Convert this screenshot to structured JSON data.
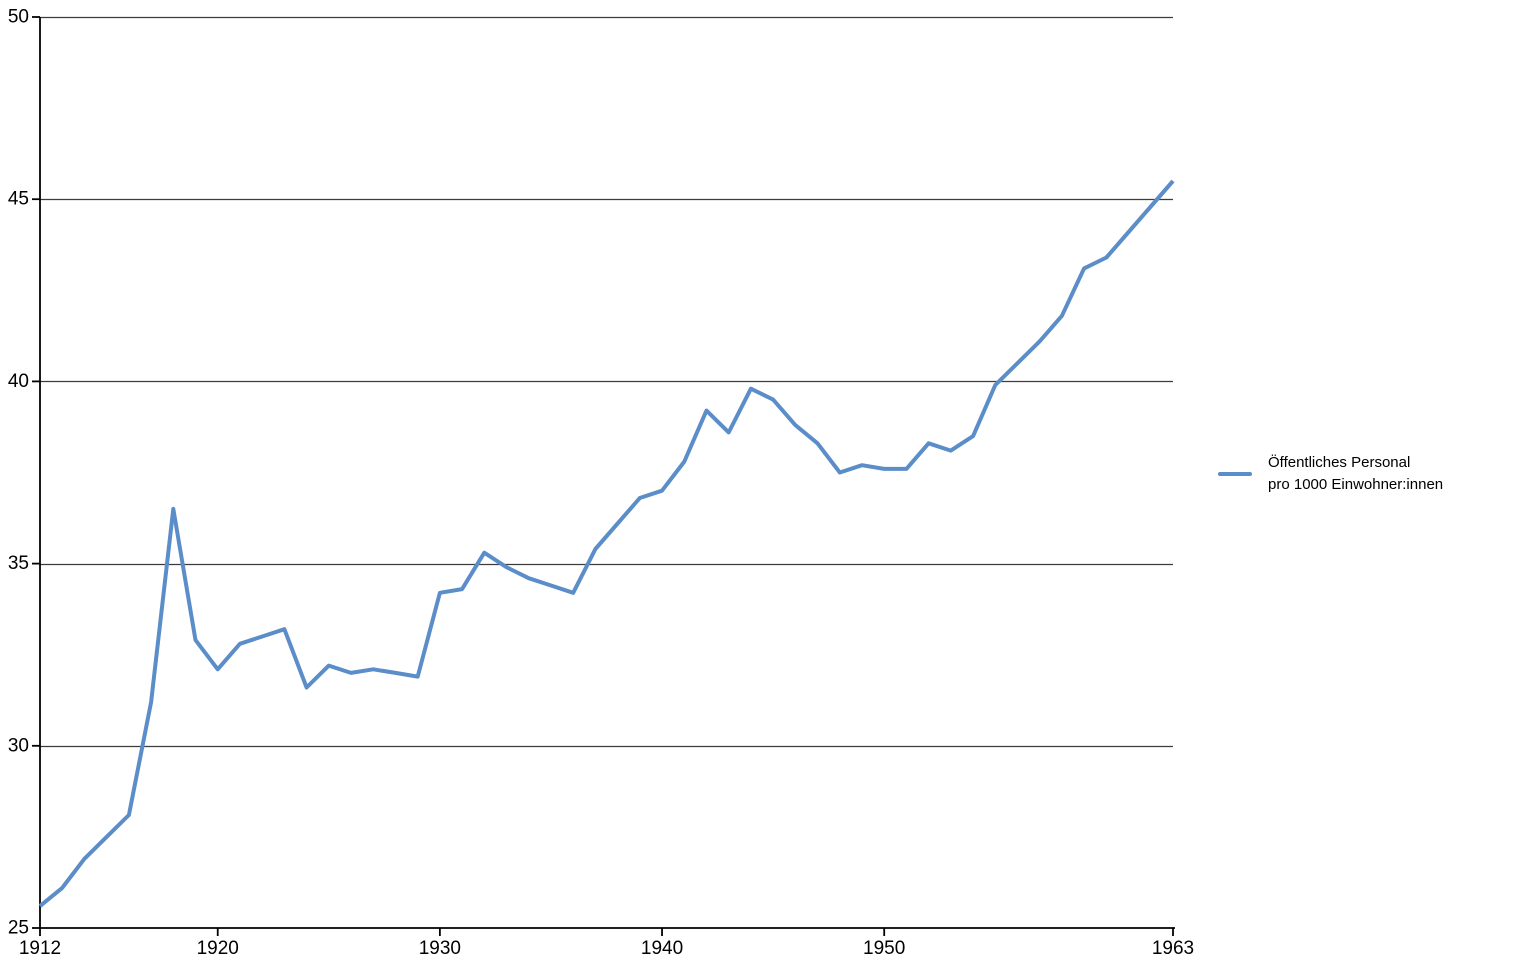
{
  "chart_data": {
    "type": "line",
    "title": "",
    "xlabel": "",
    "ylabel": "",
    "x": [
      1912,
      1913,
      1914,
      1915,
      1916,
      1917,
      1918,
      1919,
      1920,
      1921,
      1922,
      1923,
      1924,
      1925,
      1926,
      1927,
      1928,
      1929,
      1930,
      1931,
      1932,
      1933,
      1934,
      1935,
      1936,
      1937,
      1938,
      1939,
      1940,
      1941,
      1942,
      1943,
      1944,
      1945,
      1946,
      1947,
      1948,
      1949,
      1950,
      1951,
      1952,
      1953,
      1954,
      1955,
      1956,
      1957,
      1958,
      1959,
      1960,
      1961,
      1962,
      1963
    ],
    "series": [
      {
        "name": "Öffentliches Personal pro 1000 Einwohner:innen",
        "values": [
          25.6,
          26.1,
          26.9,
          27.5,
          28.1,
          31.2,
          36.5,
          32.9,
          32.1,
          32.8,
          33.0,
          33.2,
          31.6,
          32.2,
          32.0,
          32.1,
          32.0,
          31.9,
          34.2,
          34.3,
          35.3,
          34.9,
          34.6,
          34.4,
          34.2,
          35.4,
          36.1,
          36.8,
          37.0,
          37.8,
          39.2,
          38.6,
          39.8,
          39.5,
          38.8,
          38.3,
          37.5,
          37.7,
          37.6,
          37.6,
          38.3,
          38.1,
          38.5,
          39.9,
          40.5,
          41.1,
          41.8,
          43.1,
          43.4,
          44.1,
          44.8,
          45.5
        ],
        "color": "#5b8dc9"
      }
    ],
    "xlim": [
      1912,
      1963
    ],
    "ylim": [
      25,
      50
    ],
    "y_ticks": [
      25,
      30,
      35,
      40,
      45,
      50
    ],
    "x_ticks": [
      1912,
      1920,
      1930,
      1940,
      1950,
      1963
    ],
    "grid": "horizontal",
    "legend_position": "right"
  },
  "legend": {
    "line1": "Öffentliches Personal",
    "line2": "pro 1000 Einwohner:innen"
  },
  "colors": {
    "line": "#5b8dc9",
    "grid": "#3c3c3c",
    "axis": "#000000",
    "text": "#000000",
    "background": "#ffffff"
  }
}
